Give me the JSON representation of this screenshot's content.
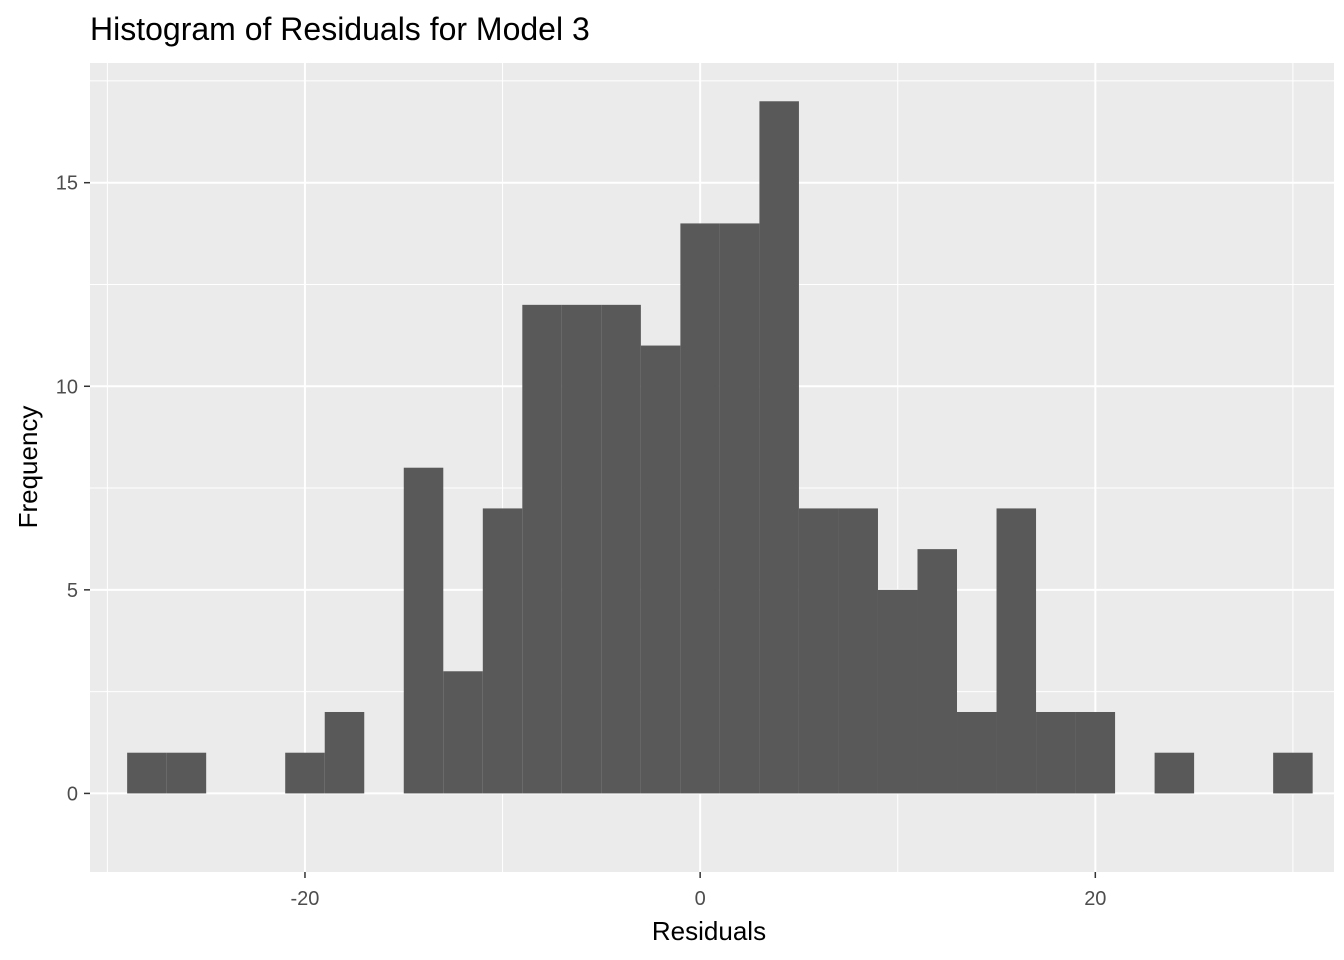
{
  "chart_data": {
    "type": "bar",
    "title": "Histogram of Residuals for Model 3",
    "xlabel": "Residuals",
    "ylabel": "Frequency",
    "xlim": [
      -30.88,
      32.08
    ],
    "ylim": [
      -1.93,
      17.94
    ],
    "x_ticks": [
      -20,
      0,
      20
    ],
    "x_tick_labels": [
      "-20",
      "0",
      "20"
    ],
    "y_ticks": [
      0,
      5,
      10,
      15
    ],
    "y_tick_labels": [
      "0",
      "5",
      "10",
      "15"
    ],
    "grid": true,
    "bin_width": 2,
    "bins": [
      {
        "x0": -29,
        "x1": -27,
        "count": 1
      },
      {
        "x0": -27,
        "x1": -25,
        "count": 1
      },
      {
        "x0": -25,
        "x1": -23,
        "count": 0
      },
      {
        "x0": -23,
        "x1": -21,
        "count": 0
      },
      {
        "x0": -21,
        "x1": -19,
        "count": 1
      },
      {
        "x0": -19,
        "x1": -17,
        "count": 2
      },
      {
        "x0": -17,
        "x1": -15,
        "count": 0
      },
      {
        "x0": -15,
        "x1": -13,
        "count": 8
      },
      {
        "x0": -13,
        "x1": -11,
        "count": 3
      },
      {
        "x0": -11,
        "x1": -9,
        "count": 7
      },
      {
        "x0": -9,
        "x1": -7,
        "count": 12
      },
      {
        "x0": -7,
        "x1": -5,
        "count": 12
      },
      {
        "x0": -5,
        "x1": -3,
        "count": 12
      },
      {
        "x0": -3,
        "x1": -1,
        "count": 11
      },
      {
        "x0": -1,
        "x1": 1,
        "count": 14
      },
      {
        "x0": 1,
        "x1": 3,
        "count": 14
      },
      {
        "x0": 3,
        "x1": 5,
        "count": 17
      },
      {
        "x0": 5,
        "x1": 7,
        "count": 7
      },
      {
        "x0": 7,
        "x1": 9,
        "count": 7
      },
      {
        "x0": 9,
        "x1": 11,
        "count": 5
      },
      {
        "x0": 11,
        "x1": 13,
        "count": 6
      },
      {
        "x0": 13,
        "x1": 15,
        "count": 2
      },
      {
        "x0": 15,
        "x1": 17,
        "count": 7
      },
      {
        "x0": 17,
        "x1": 19,
        "count": 2
      },
      {
        "x0": 19,
        "x1": 21,
        "count": 2
      },
      {
        "x0": 21,
        "x1": 23,
        "count": 0
      },
      {
        "x0": 23,
        "x1": 25,
        "count": 1
      },
      {
        "x0": 25,
        "x1": 27,
        "count": 0
      },
      {
        "x0": 27,
        "x1": 29,
        "count": 0
      },
      {
        "x0": 29,
        "x1": 31,
        "count": 1
      }
    ],
    "colors": {
      "panel": "#ebebeb",
      "grid_major": "#ffffff",
      "bar": "#595959",
      "tick": "#333333"
    }
  }
}
